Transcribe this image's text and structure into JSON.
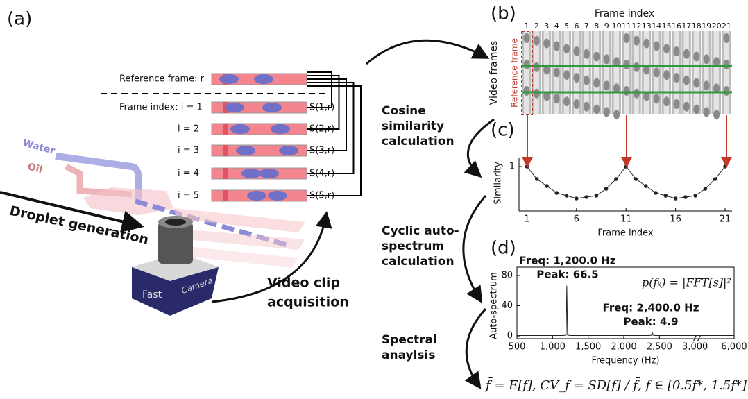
{
  "panel_labels": [
    "(a)",
    "(b)",
    "(c)",
    "(d)"
  ],
  "panel_a": {
    "reference_label": "Reference frame: r",
    "frame_labels": [
      "Frame index: i = 1",
      "i = 2",
      "i = 3",
      "i = 4",
      "i = 5"
    ],
    "similarity_labels": [
      "S(1,r)",
      "S(2,r)",
      "S(3,r)",
      "S(4,r)",
      "S(5,r)"
    ],
    "inlets": [
      "Water",
      "Oil"
    ],
    "droplet_generation": "Droplet generation",
    "camera": [
      "Fast",
      "Camera"
    ],
    "acquisition": [
      "Video clip",
      "acquisition"
    ]
  },
  "steps": [
    [
      "Cosine",
      "similarity",
      "calculation"
    ],
    [
      "Cyclic auto-",
      "spectrum",
      "calculation"
    ],
    [
      "Spectral",
      "anaylsis"
    ]
  ],
  "panel_b": {
    "title": "Frame index",
    "frame_numbers": [
      1,
      2,
      3,
      4,
      5,
      6,
      7,
      8,
      9,
      10,
      11,
      12,
      13,
      14,
      15,
      16,
      17,
      18,
      19,
      20,
      21
    ],
    "y_label": "Video frames",
    "reference_label": "Reference frame"
  },
  "chart_data": [
    {
      "type": "line",
      "x_label": "Frame index",
      "y_label": "Similarity",
      "x": [
        1,
        2,
        3,
        4,
        5,
        6,
        7,
        8,
        9,
        10,
        11,
        12,
        13,
        14,
        15,
        16,
        17,
        18,
        19,
        20,
        21
      ],
      "series": [
        {
          "color": "#222222",
          "values": [
            1,
            0.91,
            0.86,
            0.81,
            0.79,
            0.77,
            0.78,
            0.79,
            0.84,
            0.91,
            1,
            0.91,
            0.86,
            0.81,
            0.79,
            0.77,
            0.78,
            0.79,
            0.84,
            0.91,
            1
          ]
        }
      ],
      "markers": true,
      "xlim": [
        0.2,
        21.7
      ],
      "ylim": [
        0.7,
        1.06
      ],
      "xticks": [
        1,
        6,
        11,
        16,
        21
      ],
      "yticks": [
        1
      ]
    },
    {
      "type": "line",
      "x_label": "Frequency (Hz)",
      "y_label": "Auto-spectrum",
      "x": [
        500,
        1150,
        1190,
        1200,
        1210,
        1250,
        2350,
        2390,
        2400,
        2410,
        2450,
        3000,
        5500,
        6000
      ],
      "series": [
        {
          "color": "#222222",
          "values": [
            0.5,
            0.5,
            1,
            66.5,
            1,
            0.5,
            0.5,
            0.8,
            4.9,
            0.8,
            0.5,
            0.5,
            0.5,
            0.5
          ]
        }
      ],
      "markers": false,
      "xlim": [
        500,
        6000
      ],
      "x_break": [
        3000,
        5500
      ],
      "ylim": [
        0,
        80
      ],
      "xticks": [
        500,
        {
          "value": 1000,
          "label": "1,000"
        },
        {
          "value": 1500,
          "label": "1,500"
        },
        {
          "value": 2000,
          "label": "2,000"
        },
        {
          "value": 2500,
          "label": "2,500"
        },
        {
          "value": 3000,
          "label": "3,000"
        },
        {
          "value": 6000,
          "label": "6,000"
        }
      ],
      "yticks": [
        0,
        40,
        80
      ],
      "annotations": [
        "Freq: 1,200.0 Hz",
        "Peak: 66.5",
        "Freq: 2,400.0 Hz",
        "Peak: 4.9"
      ],
      "formula": "p(fₖ) = |FFT[s]|²"
    }
  ],
  "summary_formula": "f̄ = E[f], CV_f = SD[f] / f̄, f ∈ [0.5f*, 1.5f*]"
}
